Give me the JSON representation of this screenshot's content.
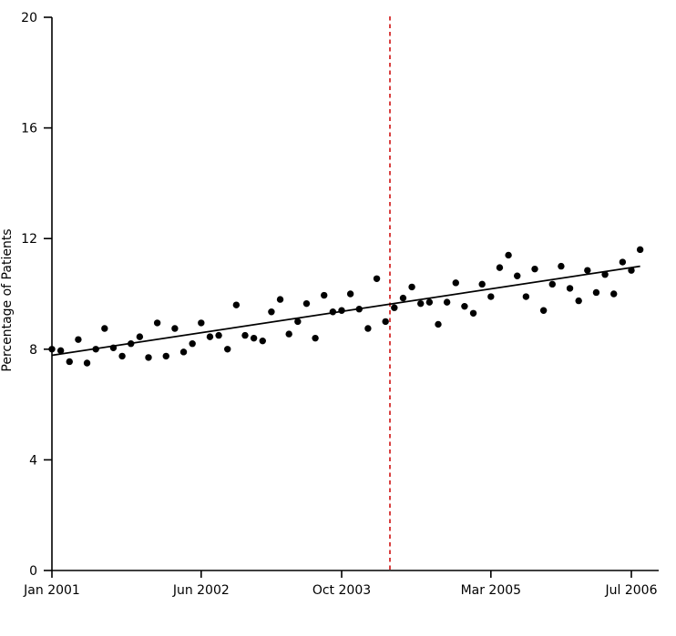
{
  "chart_data": {
    "type": "scatter",
    "title": "",
    "xlabel": "",
    "ylabel": "Percentage of Patients",
    "ylim": [
      0,
      20
    ],
    "yticks": [
      0,
      4,
      8,
      12,
      16,
      20
    ],
    "grid": false,
    "legend": "none",
    "background": "#ffffff",
    "x_axis": {
      "unit": "month",
      "tick_labels": [
        "Jan 2001",
        "Jun 2002",
        "Oct 2003",
        "Mar 2005",
        "Jul 2006"
      ],
      "tick_month_index": [
        0,
        17,
        33,
        50,
        66
      ],
      "month_index_range": [
        0,
        67
      ]
    },
    "series": [
      {
        "name": "monthly-percentage-of-patients",
        "type": "scatter",
        "color": "#000000",
        "first_month": "Jan 2001",
        "values": [
          8.0,
          7.95,
          7.55,
          8.35,
          7.5,
          8.0,
          8.75,
          8.05,
          7.75,
          8.2,
          8.45,
          7.7,
          8.95,
          7.75,
          8.75,
          7.9,
          8.2,
          8.95,
          8.45,
          8.5,
          8.0,
          9.6,
          8.5,
          8.4,
          8.3,
          9.35,
          9.8,
          8.55,
          9.0,
          9.65,
          8.4,
          9.95,
          9.35,
          9.4,
          10.0,
          9.45,
          8.75,
          10.55,
          9.0,
          9.5,
          9.85,
          10.25,
          9.65,
          9.7,
          8.9,
          9.7,
          10.4,
          9.55,
          9.3,
          10.35,
          9.9,
          10.95,
          11.4,
          10.65,
          9.9,
          10.9,
          9.4,
          10.35,
          11.0,
          10.2,
          9.75,
          10.85,
          10.05,
          10.7,
          10.0,
          11.15,
          10.85,
          11.6
        ]
      }
    ],
    "trend_line": {
      "type": "linear-fit",
      "color": "#000000",
      "start": {
        "month_index": 0,
        "value": 7.78
      },
      "end": {
        "month_index": 67,
        "value": 11.0
      }
    },
    "reference_line": {
      "orientation": "vertical",
      "month_index": 38.5,
      "color": "#cc0000",
      "style": "dotted"
    },
    "colors": {
      "points": "#000000",
      "trend": "#000000",
      "reference": "#cc0000",
      "axis": "#000000"
    }
  }
}
